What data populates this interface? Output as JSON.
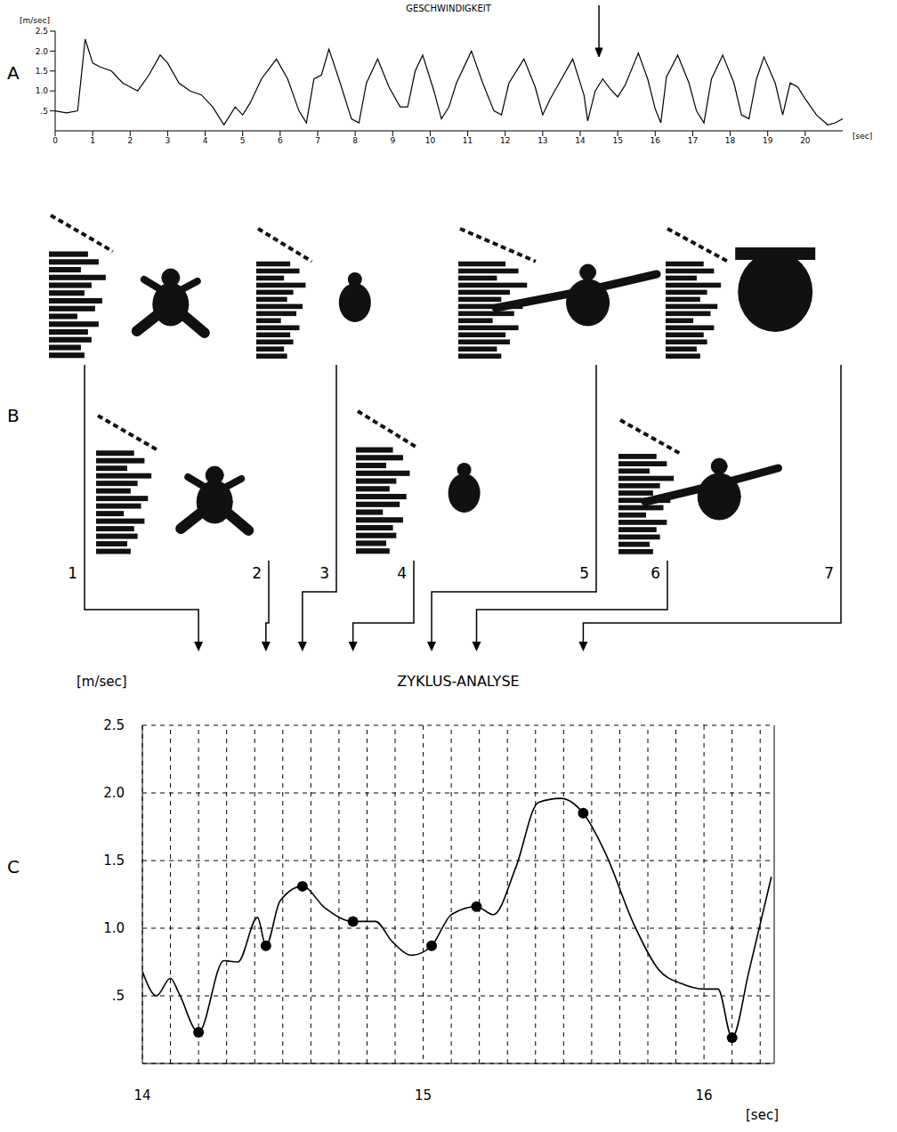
{
  "chart_data": [
    {
      "panel": "A",
      "type": "line",
      "title": "GESCHWINDIGKEIT",
      "y_label": "[m/sec]",
      "x_label": "[sec]",
      "x": [
        0,
        0.3,
        0.6,
        0.8,
        1.0,
        1.2,
        1.5,
        1.8,
        2.0,
        2.2,
        2.5,
        2.8,
        3.0,
        3.3,
        3.6,
        3.9,
        4.2,
        4.5,
        4.8,
        5.0,
        5.2,
        5.5,
        5.9,
        6.2,
        6.5,
        6.7,
        6.9,
        7.1,
        7.3,
        7.6,
        7.9,
        8.1,
        8.3,
        8.6,
        8.9,
        9.2,
        9.4,
        9.6,
        9.8,
        10.1,
        10.3,
        10.5,
        10.7,
        11.1,
        11.4,
        11.7,
        11.9,
        12.1,
        12.5,
        12.8,
        13.0,
        13.2,
        13.5,
        13.8,
        14.1,
        14.2,
        14.4,
        14.6,
        14.8,
        15.0,
        15.2,
        15.55,
        15.8,
        16.0,
        16.15,
        16.3,
        16.6,
        16.9,
        17.1,
        17.3,
        17.5,
        17.8,
        18.1,
        18.3,
        18.5,
        18.7,
        18.9,
        19.2,
        19.4,
        19.6,
        19.8,
        20.0,
        20.3,
        20.6,
        20.8,
        21.0
      ],
      "values": [
        0.5,
        0.45,
        0.5,
        2.3,
        1.7,
        1.6,
        1.5,
        1.2,
        1.1,
        1.0,
        1.4,
        1.9,
        1.7,
        1.2,
        1.0,
        0.9,
        0.6,
        0.15,
        0.6,
        0.4,
        0.7,
        1.3,
        1.8,
        1.3,
        0.5,
        0.2,
        1.3,
        1.4,
        2.05,
        1.2,
        0.3,
        0.2,
        1.2,
        1.8,
        1.1,
        0.6,
        0.6,
        1.5,
        1.9,
        1.0,
        0.3,
        0.6,
        1.2,
        2.0,
        1.2,
        0.5,
        0.4,
        1.2,
        1.8,
        1.1,
        0.4,
        0.8,
        1.3,
        1.8,
        0.9,
        0.25,
        1.0,
        1.3,
        1.05,
        0.85,
        1.15,
        1.95,
        1.3,
        0.55,
        0.2,
        1.35,
        1.9,
        1.2,
        0.5,
        0.2,
        1.3,
        1.9,
        1.2,
        0.4,
        0.3,
        1.3,
        1.85,
        1.2,
        0.4,
        1.2,
        1.1,
        0.8,
        0.4,
        0.15,
        0.2,
        0.3
      ],
      "color": "#000000",
      "xlim": [
        0,
        21
      ],
      "xticks": [
        0,
        1,
        2,
        3,
        4,
        5,
        6,
        7,
        8,
        9,
        10,
        11,
        12,
        13,
        14,
        15,
        16,
        17,
        18,
        19,
        20
      ],
      "ylim": [
        0,
        2.5
      ],
      "yticks": [
        {
          "value": 0.5,
          "label": ".5"
        },
        {
          "value": 1,
          "label": "1.0"
        },
        {
          "value": 1.5,
          "label": "1.5"
        },
        {
          "value": 2,
          "label": "2.0"
        },
        {
          "value": 2.5,
          "label": "2.5"
        }
      ],
      "grid": false,
      "arrow_x": 14.5
    },
    {
      "panel": "C",
      "type": "line",
      "title": "ZYKLUS-ANALYSE",
      "y_label": "[m/sec]",
      "x_label": "[sec]",
      "x": [
        14.0,
        14.05,
        14.1,
        14.13,
        14.2,
        14.29,
        14.34,
        14.41,
        14.44,
        14.49,
        14.57,
        14.65,
        14.75,
        14.83,
        14.89,
        14.96,
        15.03,
        15.1,
        15.19,
        15.25,
        15.33,
        15.41,
        15.49,
        15.57,
        15.65,
        15.75,
        15.84,
        15.92,
        16.0,
        16.05,
        16.1,
        16.16,
        16.24
      ],
      "values": [
        0.68,
        0.5,
        0.63,
        0.52,
        0.23,
        0.76,
        0.75,
        1.08,
        0.87,
        1.2,
        1.31,
        1.15,
        1.05,
        1.05,
        0.9,
        0.8,
        0.87,
        1.1,
        1.16,
        1.1,
        1.45,
        1.93,
        1.96,
        1.85,
        1.55,
        1.03,
        0.69,
        0.59,
        0.55,
        0.55,
        0.19,
        0.68,
        1.38
      ],
      "points": {
        "x": [
          14.2,
          14.44,
          14.57,
          14.75,
          15.03,
          15.19,
          15.57,
          16.1
        ],
        "values": [
          0.23,
          0.87,
          1.31,
          1.05,
          0.87,
          1.16,
          1.85,
          0.19
        ]
      },
      "color": "#000000",
      "marker": "circle",
      "xlim": [
        14,
        16.25
      ],
      "xticks": [
        14,
        15,
        16
      ],
      "minor_xticks": [
        14.1,
        14.2,
        14.3,
        14.4,
        14.5,
        14.6,
        14.7,
        14.8,
        14.9,
        15.1,
        15.2,
        15.3,
        15.4,
        15.5,
        15.6,
        15.7,
        15.8,
        15.9,
        16.1,
        16.2
      ],
      "ylim": [
        0,
        2.5
      ],
      "yticks": [
        {
          "value": 0.5,
          "label": ".5"
        },
        {
          "value": 1,
          "label": "1.0"
        },
        {
          "value": 1.5,
          "label": "1.5"
        },
        {
          "value": 2,
          "label": "2.0"
        },
        {
          "value": 2.5,
          "label": "2.5"
        }
      ],
      "grid": true
    }
  ],
  "panel_B": {
    "panel": "B",
    "frames": [
      {
        "number": 1,
        "x": 14.2
      },
      {
        "number": 2,
        "x": 14.44
      },
      {
        "number": 3,
        "x": 14.57
      },
      {
        "number": 4,
        "x": 14.75
      },
      {
        "number": 5,
        "x": 15.03
      },
      {
        "number": 6,
        "x": 15.19
      },
      {
        "number": 7,
        "x": 15.57
      }
    ]
  }
}
